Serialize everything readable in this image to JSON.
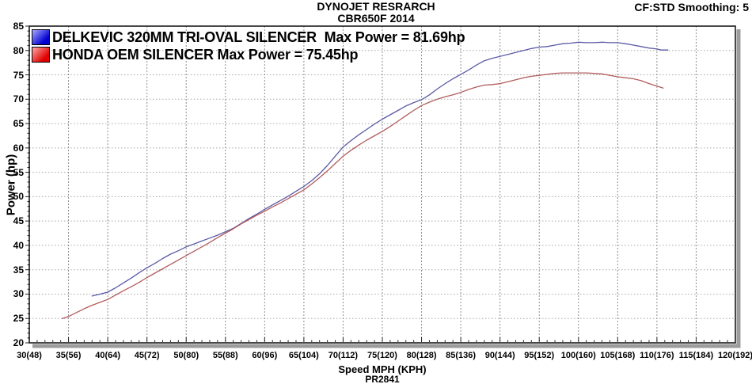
{
  "header": {
    "line1": "DYNOJET RESRARCH",
    "line2": "CBR650F 2014",
    "smoothing": "CF:STD Smoothing: 5"
  },
  "axes": {
    "y_label": "Power (hp)",
    "x_label": "Speed MPH (KPH)"
  },
  "footer": {
    "code": "PR2841"
  },
  "legend": [
    {
      "label": "DELKEVIC 320MM TRI-OVAL SILENCER  Max Power = 81.69hp",
      "swatch_color": "#0000d0",
      "swatch_light": "#a8a8ff"
    },
    {
      "label": "HONDA OEM SILENCER Max Power = 75.45hp",
      "swatch_color": "#e00000",
      "swatch_light": "#ffa8a8"
    }
  ],
  "colors": {
    "blue_curve": "#5b5ba6",
    "red_curve": "#b25c5c",
    "v_grid": "#8f8f8f",
    "h_grid": "#a8a8a8",
    "frame": "#1a1a1a",
    "shadow": "#9c9c9c"
  },
  "chart_data": {
    "type": "line",
    "title": "DYNOJET RESRARCH",
    "subtitle": "CBR650F 2014",
    "xlabel": "Speed MPH (KPH)",
    "ylabel": "Power (hp)",
    "xlim": [
      30,
      120
    ],
    "ylim": [
      20,
      85
    ],
    "x_major_step": 5,
    "y_major_step": 5,
    "grid": true,
    "legend_position": "top-left",
    "xtick_labels": [
      "30(48)",
      "35(56)",
      "40(64)",
      "45(72)",
      "50(80)",
      "55(88)",
      "60(96)",
      "65(104)",
      "70(112)",
      "75(120)",
      "80(128)",
      "85(136)",
      "90(144)",
      "95(152)",
      "100(160)",
      "105(168)",
      "110(176)",
      "115(184)",
      "120(192)"
    ],
    "ytick_labels": [
      "20",
      "25",
      "30",
      "35",
      "40",
      "45",
      "50",
      "55",
      "60",
      "65",
      "70",
      "75",
      "80",
      "85"
    ],
    "series": [
      {
        "name": "DELKEVIC 320MM TRI-OVAL SILENCER",
        "max_power_hp": 81.69,
        "color": "#5b5ba6",
        "points": [
          [
            38,
            29.6
          ],
          [
            39,
            30.0
          ],
          [
            40,
            30.4
          ],
          [
            41,
            31.3
          ],
          [
            42,
            32.3
          ],
          [
            43,
            33.3
          ],
          [
            44,
            34.4
          ],
          [
            45,
            35.4
          ],
          [
            46,
            36.3
          ],
          [
            47,
            37.3
          ],
          [
            48,
            38.2
          ],
          [
            49,
            38.9
          ],
          [
            50,
            39.7
          ],
          [
            51,
            40.3
          ],
          [
            52,
            40.9
          ],
          [
            53,
            41.5
          ],
          [
            54,
            42.1
          ],
          [
            55,
            42.8
          ],
          [
            56,
            43.5
          ],
          [
            57,
            44.5
          ],
          [
            58,
            45.5
          ],
          [
            59,
            46.4
          ],
          [
            60,
            47.4
          ],
          [
            61,
            48.3
          ],
          [
            62,
            49.2
          ],
          [
            63,
            50.1
          ],
          [
            64,
            51.1
          ],
          [
            65,
            52.1
          ],
          [
            66,
            53.3
          ],
          [
            67,
            54.7
          ],
          [
            68,
            56.4
          ],
          [
            69,
            58.3
          ],
          [
            70,
            60.2
          ],
          [
            71,
            61.5
          ],
          [
            72,
            62.7
          ],
          [
            73,
            63.8
          ],
          [
            74,
            64.9
          ],
          [
            75,
            65.9
          ],
          [
            76,
            66.8
          ],
          [
            77,
            67.7
          ],
          [
            78,
            68.6
          ],
          [
            79,
            69.3
          ],
          [
            80,
            69.9
          ],
          [
            81,
            70.9
          ],
          [
            82,
            72.1
          ],
          [
            83,
            73.2
          ],
          [
            84,
            74.2
          ],
          [
            85,
            75.1
          ],
          [
            86,
            76.0
          ],
          [
            87,
            77.0
          ],
          [
            88,
            77.9
          ],
          [
            89,
            78.4
          ],
          [
            90,
            78.8
          ],
          [
            91,
            79.2
          ],
          [
            92,
            79.6
          ],
          [
            93,
            80.0
          ],
          [
            94,
            80.4
          ],
          [
            95,
            80.7
          ],
          [
            96,
            80.8
          ],
          [
            97,
            81.1
          ],
          [
            98,
            81.4
          ],
          [
            99,
            81.5
          ],
          [
            100,
            81.7
          ],
          [
            101,
            81.6
          ],
          [
            102,
            81.6
          ],
          [
            103,
            81.7
          ],
          [
            104,
            81.6
          ],
          [
            105,
            81.6
          ],
          [
            106,
            81.4
          ],
          [
            107,
            81.1
          ],
          [
            108,
            80.8
          ],
          [
            109,
            80.5
          ],
          [
            110,
            80.3
          ],
          [
            110.6,
            80.1
          ],
          [
            111.4,
            80.1
          ]
        ]
      },
      {
        "name": "HONDA OEM SILENCER",
        "max_power_hp": 75.45,
        "color": "#b25c5c",
        "points": [
          [
            34.2,
            25.0
          ],
          [
            35,
            25.4
          ],
          [
            36,
            26.2
          ],
          [
            37,
            27.0
          ],
          [
            38,
            27.7
          ],
          [
            39,
            28.3
          ],
          [
            40,
            28.9
          ],
          [
            41,
            29.8
          ],
          [
            42,
            30.7
          ],
          [
            43,
            31.5
          ],
          [
            44,
            32.4
          ],
          [
            45,
            33.4
          ],
          [
            46,
            34.3
          ],
          [
            47,
            35.2
          ],
          [
            48,
            36.1
          ],
          [
            49,
            37.0
          ],
          [
            50,
            37.9
          ],
          [
            51,
            38.8
          ],
          [
            52,
            39.7
          ],
          [
            53,
            40.6
          ],
          [
            54,
            41.6
          ],
          [
            55,
            42.5
          ],
          [
            56,
            43.4
          ],
          [
            57,
            44.4
          ],
          [
            58,
            45.3
          ],
          [
            59,
            46.2
          ],
          [
            60,
            47.0
          ],
          [
            61,
            47.9
          ],
          [
            62,
            48.7
          ],
          [
            63,
            49.6
          ],
          [
            64,
            50.5
          ],
          [
            65,
            51.4
          ],
          [
            66,
            52.6
          ],
          [
            67,
            53.9
          ],
          [
            68,
            55.3
          ],
          [
            69,
            56.8
          ],
          [
            70,
            58.3
          ],
          [
            71,
            59.5
          ],
          [
            72,
            60.6
          ],
          [
            73,
            61.6
          ],
          [
            74,
            62.5
          ],
          [
            75,
            63.4
          ],
          [
            76,
            64.4
          ],
          [
            77,
            65.5
          ],
          [
            78,
            66.6
          ],
          [
            79,
            67.7
          ],
          [
            80,
            68.7
          ],
          [
            81,
            69.4
          ],
          [
            82,
            70.0
          ],
          [
            83,
            70.5
          ],
          [
            84,
            70.9
          ],
          [
            85,
            71.4
          ],
          [
            86,
            72.0
          ],
          [
            87,
            72.5
          ],
          [
            88,
            72.9
          ],
          [
            89,
            73.0
          ],
          [
            90,
            73.2
          ],
          [
            91,
            73.6
          ],
          [
            92,
            74.0
          ],
          [
            93,
            74.4
          ],
          [
            94,
            74.7
          ],
          [
            95,
            74.9
          ],
          [
            96,
            75.1
          ],
          [
            97,
            75.3
          ],
          [
            98,
            75.4
          ],
          [
            99,
            75.4
          ],
          [
            100,
            75.4
          ],
          [
            101,
            75.4
          ],
          [
            102,
            75.3
          ],
          [
            103,
            75.2
          ],
          [
            104,
            74.9
          ],
          [
            105,
            74.6
          ],
          [
            106,
            74.4
          ],
          [
            107,
            74.2
          ],
          [
            108,
            73.8
          ],
          [
            109,
            73.2
          ],
          [
            110,
            72.7
          ],
          [
            110.8,
            72.3
          ]
        ]
      }
    ]
  }
}
